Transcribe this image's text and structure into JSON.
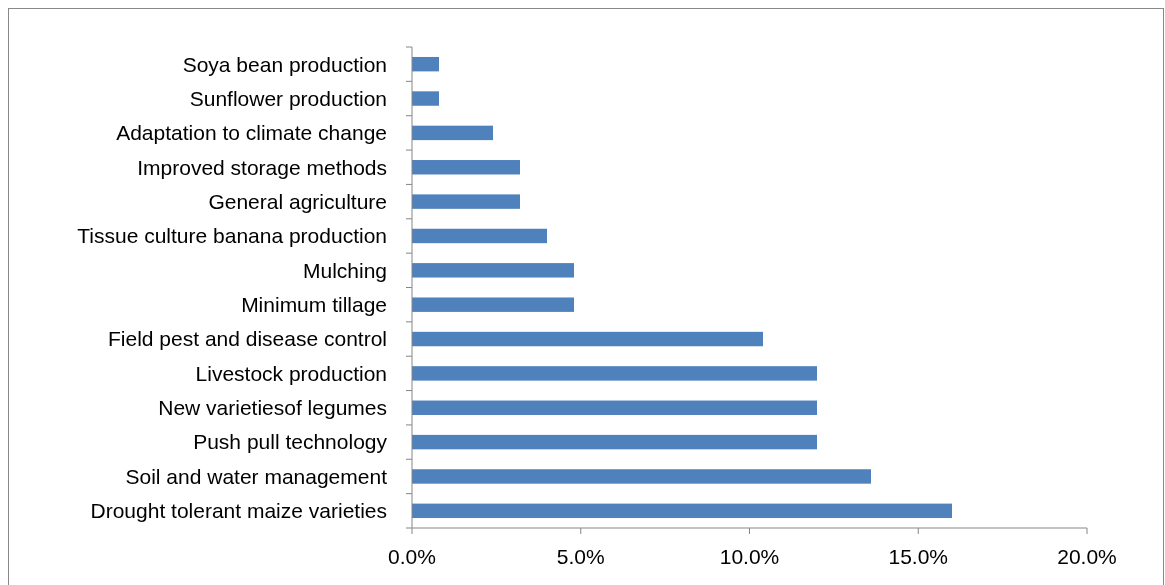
{
  "chart_data": {
    "type": "bar",
    "orientation": "horizontal",
    "categories": [
      "Soya bean production",
      "Sunflower production",
      "Adaptation to climate change",
      "Improved storage methods",
      "General agriculture",
      "Tissue culture banana production",
      "Mulching",
      "Minimum tillage",
      "Field pest and disease control",
      "Livestock production",
      "New varietiesof legumes",
      "Push pull technology",
      "Soil and water management",
      "Drought tolerant maize varieties"
    ],
    "values": [
      0.8,
      0.8,
      2.4,
      3.2,
      3.2,
      4.0,
      4.8,
      4.8,
      10.4,
      12.0,
      12.0,
      12.0,
      13.6,
      16.0
    ],
    "color": "#4f81bd",
    "xlim": [
      0,
      20
    ],
    "xticks": [
      {
        "value": 0,
        "label": "0.0%"
      },
      {
        "value": 5,
        "label": "5.0%"
      },
      {
        "value": 10,
        "label": "10.0%"
      },
      {
        "value": 15,
        "label": "15.0%"
      },
      {
        "value": 20,
        "label": "20.0%"
      }
    ],
    "grid": false
  }
}
